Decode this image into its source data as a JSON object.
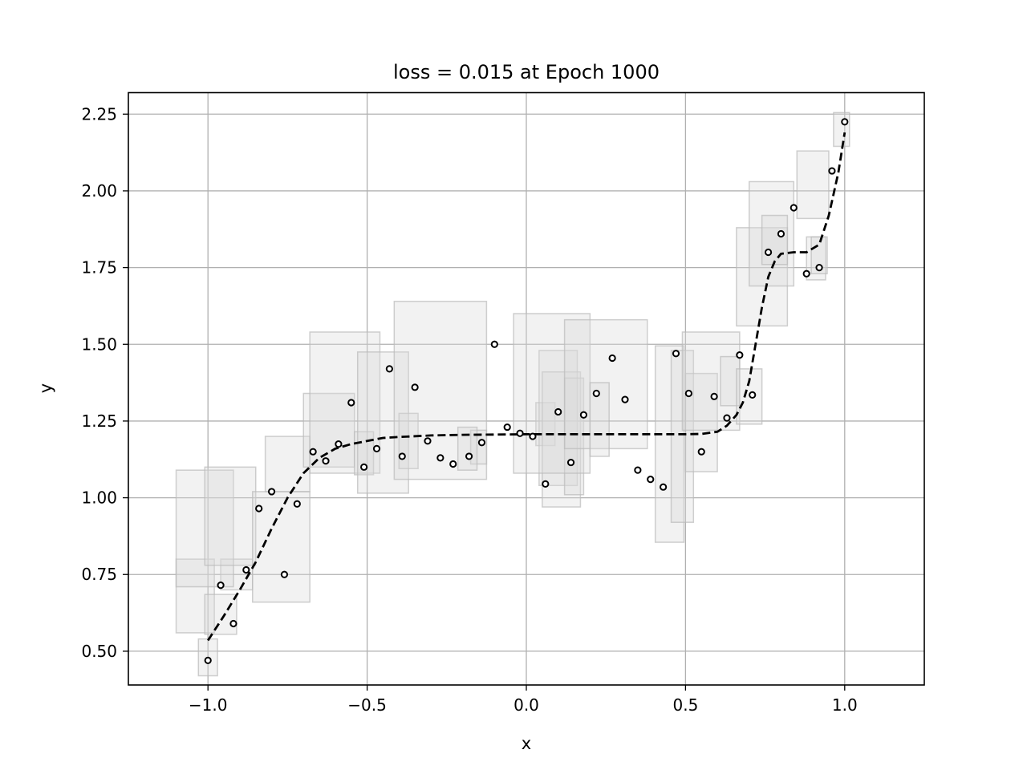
{
  "chart_data": {
    "type": "scatter",
    "title": "loss = 0.015 at Epoch 1000",
    "xlabel": "x",
    "ylabel": "y",
    "xlim": [
      -1.25,
      1.25
    ],
    "ylim": [
      0.39,
      2.32
    ],
    "grid": true,
    "x_ticks": [
      -1.0,
      -0.5,
      0.0,
      0.5,
      1.0
    ],
    "x_tick_labels": [
      "−1.0",
      "−0.5",
      "0.0",
      "0.5",
      "1.0"
    ],
    "y_ticks": [
      0.5,
      0.75,
      1.0,
      1.25,
      1.5,
      1.75,
      2.0,
      2.25
    ],
    "y_tick_labels": [
      "0.50",
      "0.75",
      "1.00",
      "1.25",
      "1.50",
      "1.75",
      "2.00",
      "2.25"
    ],
    "colors": {
      "points": "#000000",
      "fit": "#000000",
      "boxes_fill": "#d9d9d9",
      "boxes_edge": "#bbbbbb",
      "grid": "#b0b0b0"
    },
    "points": [
      {
        "x": -1.0,
        "y": 0.47
      },
      {
        "x": -0.96,
        "y": 0.715
      },
      {
        "x": -0.92,
        "y": 0.59
      },
      {
        "x": -0.88,
        "y": 0.765
      },
      {
        "x": -0.84,
        "y": 0.965
      },
      {
        "x": -0.8,
        "y": 1.02
      },
      {
        "x": -0.76,
        "y": 0.75
      },
      {
        "x": -0.72,
        "y": 0.98
      },
      {
        "x": -0.67,
        "y": 1.15
      },
      {
        "x": -0.63,
        "y": 1.12
      },
      {
        "x": -0.59,
        "y": 1.175
      },
      {
        "x": -0.55,
        "y": 1.31
      },
      {
        "x": -0.51,
        "y": 1.1
      },
      {
        "x": -0.47,
        "y": 1.16
      },
      {
        "x": -0.43,
        "y": 1.42
      },
      {
        "x": -0.39,
        "y": 1.135
      },
      {
        "x": -0.35,
        "y": 1.36
      },
      {
        "x": -0.31,
        "y": 1.185
      },
      {
        "x": -0.27,
        "y": 1.13
      },
      {
        "x": -0.23,
        "y": 1.11
      },
      {
        "x": -0.18,
        "y": 1.135
      },
      {
        "x": -0.14,
        "y": 1.18
      },
      {
        "x": -0.1,
        "y": 1.5
      },
      {
        "x": -0.06,
        "y": 1.23
      },
      {
        "x": -0.02,
        "y": 1.21
      },
      {
        "x": 0.02,
        "y": 1.2
      },
      {
        "x": 0.06,
        "y": 1.045
      },
      {
        "x": 0.1,
        "y": 1.28
      },
      {
        "x": 0.14,
        "y": 1.115
      },
      {
        "x": 0.18,
        "y": 1.27
      },
      {
        "x": 0.22,
        "y": 1.34
      },
      {
        "x": 0.27,
        "y": 1.455
      },
      {
        "x": 0.31,
        "y": 1.32
      },
      {
        "x": 0.35,
        "y": 1.09
      },
      {
        "x": 0.39,
        "y": 1.06
      },
      {
        "x": 0.43,
        "y": 1.035
      },
      {
        "x": 0.47,
        "y": 1.47
      },
      {
        "x": 0.51,
        "y": 1.34
      },
      {
        "x": 0.55,
        "y": 1.15
      },
      {
        "x": 0.59,
        "y": 1.33
      },
      {
        "x": 0.63,
        "y": 1.26
      },
      {
        "x": 0.67,
        "y": 1.465
      },
      {
        "x": 0.71,
        "y": 1.335
      },
      {
        "x": 0.76,
        "y": 1.8
      },
      {
        "x": 0.8,
        "y": 1.86
      },
      {
        "x": 0.84,
        "y": 1.945
      },
      {
        "x": 0.88,
        "y": 1.73
      },
      {
        "x": 0.92,
        "y": 1.75
      },
      {
        "x": 0.96,
        "y": 2.065
      },
      {
        "x": 1.0,
        "y": 2.225
      }
    ],
    "fit_curve": {
      "x": [
        -1.0,
        -0.95,
        -0.9,
        -0.85,
        -0.8,
        -0.75,
        -0.7,
        -0.65,
        -0.6,
        -0.55,
        -0.5,
        -0.45,
        -0.4,
        -0.3,
        -0.2,
        -0.1,
        0.0,
        0.1,
        0.2,
        0.3,
        0.4,
        0.5,
        0.55,
        0.6,
        0.63,
        0.66,
        0.68,
        0.7,
        0.72,
        0.74,
        0.76,
        0.78,
        0.8,
        0.84,
        0.88,
        0.92,
        0.95,
        0.98,
        1.0
      ],
      "y": [
        0.535,
        0.615,
        0.7,
        0.79,
        0.9,
        1.0,
        1.08,
        1.13,
        1.16,
        1.175,
        1.185,
        1.195,
        1.198,
        1.203,
        1.205,
        1.206,
        1.207,
        1.207,
        1.207,
        1.207,
        1.207,
        1.207,
        1.208,
        1.215,
        1.235,
        1.27,
        1.31,
        1.38,
        1.5,
        1.62,
        1.72,
        1.77,
        1.795,
        1.8,
        1.8,
        1.825,
        1.92,
        2.06,
        2.19
      ]
    },
    "boxes": [
      [
        -1.0,
        0.48,
        0.03,
        0.06
      ],
      [
        -1.04,
        0.68,
        0.06,
        0.12
      ],
      [
        -0.96,
        0.62,
        0.05,
        0.065
      ],
      [
        -0.91,
        0.75,
        0.05,
        0.05
      ],
      [
        -1.01,
        0.9,
        0.09,
        0.19
      ],
      [
        -0.93,
        0.94,
        0.08,
        0.16
      ],
      [
        -0.77,
        0.84,
        0.09,
        0.18
      ],
      [
        -0.75,
        1.11,
        0.07,
        0.09
      ],
      [
        -0.62,
        1.22,
        0.08,
        0.12
      ],
      [
        -0.57,
        1.31,
        0.11,
        0.23
      ],
      [
        -0.51,
        1.145,
        0.03,
        0.07
      ],
      [
        -0.45,
        1.245,
        0.08,
        0.23
      ],
      [
        -0.37,
        1.185,
        0.03,
        0.09
      ],
      [
        -0.27,
        1.35,
        0.145,
        0.29
      ],
      [
        -0.15,
        1.165,
        0.025,
        0.055
      ],
      [
        -0.185,
        1.16,
        0.03,
        0.07
      ],
      [
        0.06,
        1.24,
        0.03,
        0.07
      ],
      [
        0.1,
        1.26,
        0.06,
        0.22
      ],
      [
        0.11,
        1.19,
        0.06,
        0.22
      ],
      [
        0.15,
        1.2,
        0.03,
        0.19
      ],
      [
        0.08,
        1.34,
        0.12,
        0.26
      ],
      [
        0.25,
        1.37,
        0.13,
        0.21
      ],
      [
        0.23,
        1.255,
        0.03,
        0.12
      ],
      [
        0.45,
        1.175,
        0.045,
        0.32
      ],
      [
        0.49,
        1.2,
        0.035,
        0.28
      ],
      [
        0.55,
        1.245,
        0.05,
        0.16
      ],
      [
        0.58,
        1.38,
        0.09,
        0.16
      ],
      [
        0.64,
        1.38,
        0.03,
        0.08
      ],
      [
        0.7,
        1.33,
        0.04,
        0.09
      ],
      [
        0.74,
        1.72,
        0.08,
        0.16
      ],
      [
        0.77,
        1.86,
        0.07,
        0.17
      ],
      [
        0.78,
        1.84,
        0.04,
        0.08
      ],
      [
        0.91,
        1.78,
        0.03,
        0.07
      ],
      [
        0.9,
        2.02,
        0.05,
        0.11
      ],
      [
        0.92,
        1.79,
        0.025,
        0.06
      ],
      [
        0.99,
        2.2,
        0.025,
        0.055
      ]
    ]
  }
}
